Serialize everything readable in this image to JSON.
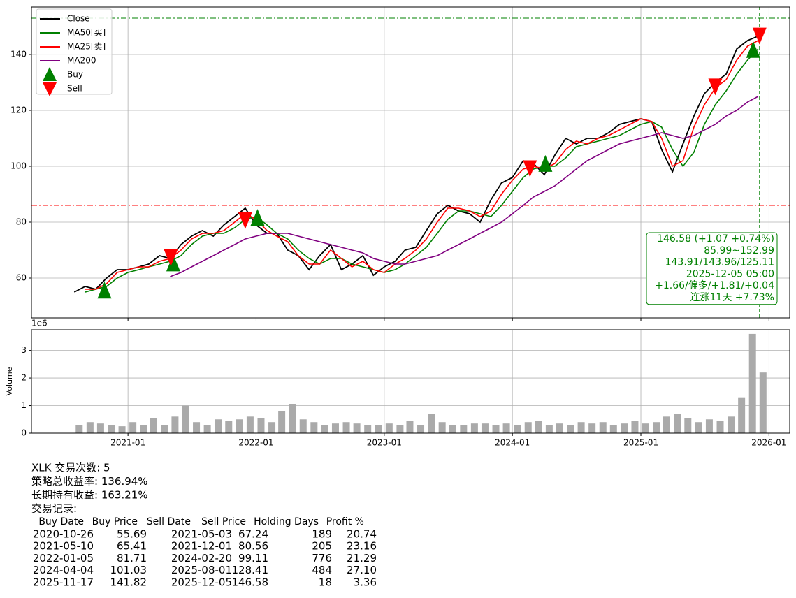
{
  "chart_data": [
    {
      "type": "line",
      "x": [
        "2020-08",
        "2020-09",
        "2020-10",
        "2020-11",
        "2020-12",
        "2021-01",
        "2021-02",
        "2021-03",
        "2021-04",
        "2021-05",
        "2021-06",
        "2021-07",
        "2021-08",
        "2021-09",
        "2021-10",
        "2021-11",
        "2021-12",
        "2022-01",
        "2022-02",
        "2022-03",
        "2022-04",
        "2022-05",
        "2022-06",
        "2022-07",
        "2022-08",
        "2022-09",
        "2022-10",
        "2022-11",
        "2022-12",
        "2023-01",
        "2023-02",
        "2023-03",
        "2023-04",
        "2023-05",
        "2023-06",
        "2023-07",
        "2023-08",
        "2023-09",
        "2023-10",
        "2023-11",
        "2023-12",
        "2024-01",
        "2024-02",
        "2024-03",
        "2024-04",
        "2024-05",
        "2024-06",
        "2024-07",
        "2024-08",
        "2024-09",
        "2024-10",
        "2024-11",
        "2024-12",
        "2025-01",
        "2025-02",
        "2025-03",
        "2025-04",
        "2025-05",
        "2025-06",
        "2025-07",
        "2025-08",
        "2025-09",
        "2025-10",
        "2025-11",
        "2025-12"
      ],
      "series": [
        {
          "name": "Close",
          "color": "#000000",
          "values": [
            55,
            57,
            56,
            60,
            63,
            63,
            64,
            65,
            68,
            67,
            72,
            75,
            77,
            75,
            79,
            82,
            85,
            79,
            76,
            76,
            70,
            68,
            63,
            68,
            72,
            63,
            65,
            68,
            61,
            64,
            66,
            70,
            71,
            77,
            83,
            86,
            84,
            83,
            80,
            88,
            94,
            96,
            102,
            101,
            97,
            104,
            110,
            108,
            110,
            110,
            112,
            115,
            116,
            117,
            116,
            106,
            98,
            108,
            118,
            126,
            130,
            133,
            142,
            145,
            146.58
          ]
        },
        {
          "name": "MA50[买]",
          "color": "#008000",
          "values": [
            null,
            55,
            56,
            57,
            60,
            62,
            63,
            64,
            65,
            66,
            68,
            72,
            75,
            76,
            76,
            78,
            81,
            82,
            79,
            76,
            74,
            70,
            67,
            65,
            67,
            67,
            65,
            64,
            63,
            62,
            63,
            65,
            68,
            71,
            76,
            81,
            84,
            84,
            83,
            82,
            86,
            91,
            96,
            99,
            100,
            100,
            103,
            107,
            108,
            109,
            110,
            111,
            113,
            115,
            116,
            114,
            106,
            100,
            105,
            115,
            122,
            127,
            133,
            138,
            142
          ]
        },
        {
          "name": "MA25[卖]",
          "color": "#ff0000",
          "values": [
            null,
            56,
            56,
            58,
            62,
            63,
            64,
            64,
            66,
            67,
            70,
            74,
            76,
            76,
            77,
            80,
            83,
            81,
            77,
            75,
            73,
            68,
            65,
            65,
            70,
            67,
            64,
            66,
            63,
            62,
            65,
            67,
            70,
            74,
            80,
            85,
            85,
            84,
            82,
            84,
            90,
            95,
            99,
            100,
            99,
            101,
            106,
            109,
            108,
            110,
            111,
            113,
            115,
            117,
            116,
            110,
            100,
            102,
            114,
            122,
            128,
            131,
            138,
            143,
            145
          ]
        },
        {
          "name": "MA200",
          "color": "#800080",
          "values": [
            null,
            null,
            null,
            null,
            null,
            null,
            null,
            null,
            null,
            60.5,
            62,
            64,
            66,
            68,
            70,
            72,
            74,
            75,
            76,
            76,
            76,
            75,
            74,
            73,
            72,
            71,
            70,
            69,
            67,
            66,
            65,
            65,
            66,
            67,
            68,
            70,
            72,
            74,
            76,
            78,
            80,
            83,
            86,
            89,
            91,
            93,
            96,
            99,
            102,
            104,
            106,
            108,
            109,
            110,
            111,
            112,
            111,
            110,
            111,
            113,
            115,
            118,
            120,
            123,
            125
          ]
        }
      ],
      "markers": [
        {
          "name": "Buy",
          "color": "#008000",
          "shape": "up",
          "x": [
            "2020-10-26",
            "2021-05-10",
            "2022-01-05",
            "2024-04-04",
            "2025-11-17"
          ],
          "values": [
            55.69,
            65.41,
            81.71,
            101.03,
            141.82
          ]
        },
        {
          "name": "Sell",
          "color": "#ff0000",
          "shape": "down",
          "x": [
            "2021-05-03",
            "2021-12-01",
            "2024-02-20",
            "2025-08-01",
            "2025-12-05"
          ],
          "values": [
            67.24,
            80.56,
            99.11,
            128.41,
            146.58
          ]
        }
      ],
      "hlines": [
        {
          "value": 152.99,
          "color": "#008000"
        },
        {
          "value": 85.99,
          "color": "#ff0000"
        }
      ],
      "vline": "2025-12-05",
      "annotation": [
        "146.58 (+1.07 +0.74%)",
        "85.99~152.99",
        "143.91/143.96/125.11",
        "2025-12-05 05:00",
        "+1.66/偏多/+1.81/+0.04",
        "连涨11天 +7.73%"
      ],
      "xlim": [
        "2020-04",
        "2026-03"
      ],
      "xticks": [
        "2021-01",
        "2022-01",
        "2023-01",
        "2024-01",
        "2025-01",
        "2026-01"
      ],
      "ylim": [
        45.75,
        157
      ],
      "yticks": [
        60,
        80,
        100,
        120,
        140
      ],
      "grid": true,
      "legend": "upper left"
    },
    {
      "type": "bar",
      "ylabel": "Volume",
      "offset_label": "1e6",
      "color": "#aaaaaa",
      "x": [
        "2020-08",
        "2020-09",
        "2020-10",
        "2020-11",
        "2020-12",
        "2021-01",
        "2021-02",
        "2021-03",
        "2021-04",
        "2021-05",
        "2021-06",
        "2021-07",
        "2021-08",
        "2021-09",
        "2021-10",
        "2021-11",
        "2021-12",
        "2022-01",
        "2022-02",
        "2022-03",
        "2022-04",
        "2022-05",
        "2022-06",
        "2022-07",
        "2022-08",
        "2022-09",
        "2022-10",
        "2022-11",
        "2022-12",
        "2023-01",
        "2023-02",
        "2023-03",
        "2023-04",
        "2023-05",
        "2023-06",
        "2023-07",
        "2023-08",
        "2023-09",
        "2023-10",
        "2023-11",
        "2023-12",
        "2024-01",
        "2024-02",
        "2024-03",
        "2024-04",
        "2024-05",
        "2024-06",
        "2024-07",
        "2024-08",
        "2024-09",
        "2024-10",
        "2024-11",
        "2024-12",
        "2025-01",
        "2025-02",
        "2025-03",
        "2025-04",
        "2025-05",
        "2025-06",
        "2025-07",
        "2025-08",
        "2025-09",
        "2025-10",
        "2025-11",
        "2025-12"
      ],
      "values": [
        0.3,
        0.4,
        0.35,
        0.3,
        0.25,
        0.4,
        0.3,
        0.55,
        0.3,
        0.6,
        1.0,
        0.4,
        0.3,
        0.5,
        0.45,
        0.5,
        0.6,
        0.55,
        0.4,
        0.8,
        1.05,
        0.5,
        0.4,
        0.3,
        0.35,
        0.4,
        0.35,
        0.3,
        0.3,
        0.35,
        0.3,
        0.45,
        0.3,
        0.7,
        0.4,
        0.3,
        0.3,
        0.35,
        0.35,
        0.3,
        0.35,
        0.3,
        0.4,
        0.45,
        0.3,
        0.35,
        0.3,
        0.4,
        0.35,
        0.4,
        0.3,
        0.35,
        0.45,
        0.35,
        0.4,
        0.6,
        0.7,
        0.55,
        0.4,
        0.5,
        0.45,
        0.6,
        1.3,
        3.6,
        2.2
      ],
      "xlim": [
        "2020-04",
        "2026-03"
      ],
      "xticks": [
        "2021-01",
        "2022-01",
        "2023-01",
        "2024-01",
        "2025-01",
        "2026-01"
      ],
      "ylim": [
        0,
        3.75
      ],
      "yticks": [
        0,
        1,
        2,
        3
      ],
      "grid": true
    }
  ],
  "report": {
    "lines": [
      "XLK 交易次数: 5",
      "策略总收益率: 136.94%",
      "长期持有收益: 163.21%",
      "交易记录:"
    ],
    "table": {
      "columns": [
        "Buy Date",
        "Buy Price",
        "Sell Date",
        "Sell Price",
        "Holding Days",
        "Profit %"
      ],
      "rows": [
        [
          "2020-10-26",
          "55.69",
          "2021-05-03",
          "67.24",
          "189",
          "20.74"
        ],
        [
          "2021-05-10",
          "65.41",
          "2021-12-01",
          "80.56",
          "205",
          "23.16"
        ],
        [
          "2022-01-05",
          "81.71",
          "2024-02-20",
          "99.11",
          "776",
          "21.29"
        ],
        [
          "2024-04-04",
          "101.03",
          "2025-08-01",
          "128.41",
          "484",
          "27.10"
        ],
        [
          "2025-11-17",
          "141.82",
          "2025-12-05",
          "146.58",
          "18",
          "3.36"
        ]
      ]
    }
  }
}
